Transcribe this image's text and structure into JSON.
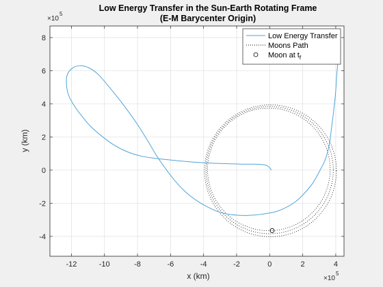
{
  "chart_data": {
    "type": "line",
    "title": [
      "Low Energy Transfer in the Sun-Earth Rotating Frame",
      "(E-M Barycenter Origin)"
    ],
    "xlabel": "x (km)",
    "ylabel": "y (km)",
    "x_exponent_label": "×10",
    "x_exponent_power": "5",
    "y_exponent_label": "×10",
    "y_exponent_power": "5",
    "xlim": [
      -1330000,
      450000
    ],
    "ylim": [
      -520000,
      870000
    ],
    "xticks": [
      -1200000,
      -1000000,
      -800000,
      -600000,
      -400000,
      -200000,
      0,
      200000,
      400000
    ],
    "xtick_labels": [
      "-12",
      "-10",
      "-8",
      "-6",
      "-4",
      "-2",
      "0",
      "2",
      "4"
    ],
    "yticks": [
      -400000,
      -200000,
      0,
      200000,
      400000,
      600000,
      800000
    ],
    "ytick_labels": [
      "-4",
      "-2",
      "0",
      "2",
      "4",
      "6",
      "8"
    ],
    "grid": true,
    "legend": {
      "placement": "top-right",
      "entries": [
        {
          "label": "Low Energy Transfer",
          "style": "solid",
          "color": "#4fa3d8"
        },
        {
          "label": "Moons Path",
          "style": "dotted",
          "color": "#000000"
        },
        {
          "label": "Moon at t",
          "subscript": "f",
          "style": "circle-marker",
          "color": "#000000"
        }
      ]
    },
    "series": [
      {
        "name": "Low Energy Transfer",
        "color": "#4fa3d8",
        "x": [
          10000,
          -5000,
          -25000,
          -60000,
          -110000,
          -170000,
          -230000,
          -300000,
          -380000,
          -460000,
          -540000,
          -620000,
          -700000,
          -780000,
          -860000,
          -940000,
          -1010000,
          -1080000,
          -1140000,
          -1190000,
          -1220000,
          -1230000,
          -1225000,
          -1195000,
          -1150000,
          -1100000,
          -1040000,
          -970000,
          -890000,
          -810000,
          -740000,
          -680000,
          -620000,
          -560000,
          -500000,
          -440000,
          -380000,
          -320000,
          -260000,
          -200000,
          -140000,
          -80000,
          -20000,
          40000,
          100000,
          160000,
          210000,
          260000,
          300000,
          335000,
          360000,
          375000,
          390000,
          400000,
          405000,
          410000,
          415000,
          420000
        ],
        "y": [
          0,
          20000,
          30000,
          35000,
          36000,
          36000,
          38000,
          40000,
          43000,
          48000,
          55000,
          63000,
          72000,
          85000,
          110000,
          150000,
          200000,
          260000,
          330000,
          400000,
          460000,
          520000,
          575000,
          615000,
          630000,
          620000,
          580000,
          500000,
          400000,
          290000,
          180000,
          80000,
          -5000,
          -80000,
          -140000,
          -185000,
          -220000,
          -248000,
          -265000,
          -272000,
          -274000,
          -270000,
          -262000,
          -250000,
          -225000,
          -188000,
          -140000,
          -80000,
          -10000,
          60000,
          150000,
          260000,
          380000,
          480000,
          560000,
          620000,
          670000,
          710000
        ]
      },
      {
        "name": "Moons Path",
        "color": "#000000",
        "shape": "ellipse",
        "center": [
          0,
          0
        ],
        "radius_x": 385000,
        "radius_y": 384000,
        "band": 14000
      },
      {
        "name": "Moon at t",
        "subscript": "f",
        "color": "#000000",
        "x": [
          15000
        ],
        "y": [
          -365000
        ]
      }
    ]
  }
}
